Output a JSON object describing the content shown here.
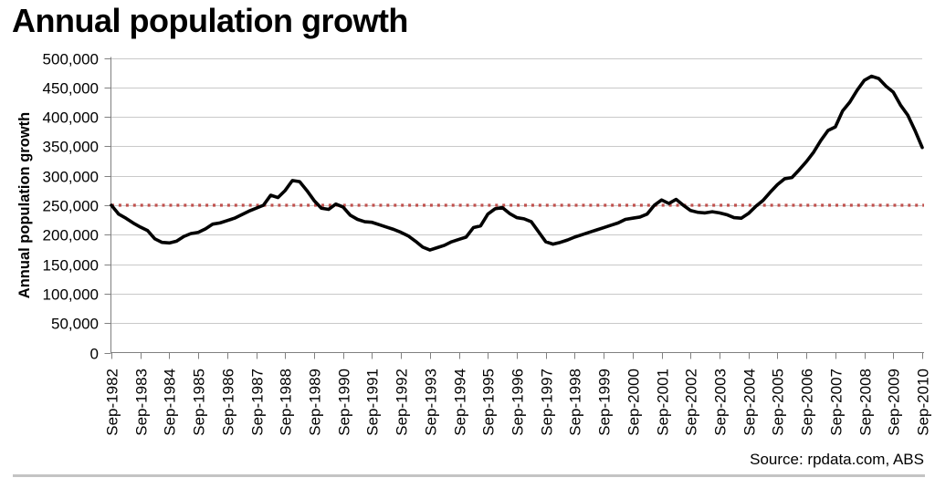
{
  "title": "Annual population growth",
  "source": "Source: rpdata.com, ABS",
  "chart_data": {
    "type": "line",
    "title": "Annual population growth",
    "xlabel": "",
    "ylabel": "Annual population growth",
    "ylim": [
      0,
      500000
    ],
    "ytick_step": 50000,
    "grid": "horizontal",
    "legend": "none",
    "x_frequency": "quarterly",
    "x_start": "Sep-1982",
    "x_end": "Sep-2010",
    "x_tick_labels": [
      "Sep-1982",
      "Sep-1983",
      "Sep-1984",
      "Sep-1985",
      "Sep-1986",
      "Sep-1987",
      "Sep-1988",
      "Sep-1989",
      "Sep-1990",
      "Sep-1991",
      "Sep-1992",
      "Sep-1993",
      "Sep-1994",
      "Sep-1995",
      "Sep-1996",
      "Sep-1997",
      "Sep-1998",
      "Sep-1999",
      "Sep-2000",
      "Sep-2001",
      "Sep-2002",
      "Sep-2003",
      "Sep-2004",
      "Sep-2005",
      "Sep-2006",
      "Sep-2007",
      "Sep-2008",
      "Sep-2009",
      "Sep-2010"
    ],
    "series": [
      {
        "name": "Annual population growth",
        "color": "#000000",
        "values": [
          250000,
          235000,
          228000,
          220000,
          213000,
          207000,
          193000,
          187000,
          186000,
          189000,
          197000,
          202000,
          204000,
          210000,
          218000,
          220000,
          224000,
          228000,
          234000,
          240000,
          245000,
          250000,
          267000,
          263000,
          275000,
          292000,
          290000,
          275000,
          258000,
          245000,
          243000,
          252000,
          247000,
          233000,
          226000,
          222000,
          221000,
          217000,
          213000,
          209000,
          204000,
          198000,
          189000,
          179000,
          174000,
          178000,
          182000,
          188000,
          192000,
          196000,
          212000,
          215000,
          235000,
          244000,
          246000,
          236000,
          229000,
          227000,
          222000,
          205000,
          188000,
          184000,
          187000,
          191000,
          196000,
          200000,
          204000,
          208000,
          212000,
          216000,
          220000,
          226000,
          228000,
          230000,
          235000,
          250000,
          259000,
          253000,
          260000,
          250000,
          241000,
          238000,
          237000,
          239000,
          237000,
          234000,
          229000,
          228000,
          236000,
          248000,
          258000,
          272000,
          285000,
          295000,
          297000,
          310000,
          324000,
          340000,
          360000,
          377000,
          383000,
          410000,
          425000,
          445000,
          462000,
          469000,
          465000,
          452000,
          442000,
          420000,
          403000,
          377000,
          348000
        ]
      }
    ],
    "reference_line": {
      "value": 250000,
      "color": "#C0504D",
      "style": "dotted"
    },
    "axis_color": "#808080",
    "gridline_color": "#C9C9C9"
  }
}
